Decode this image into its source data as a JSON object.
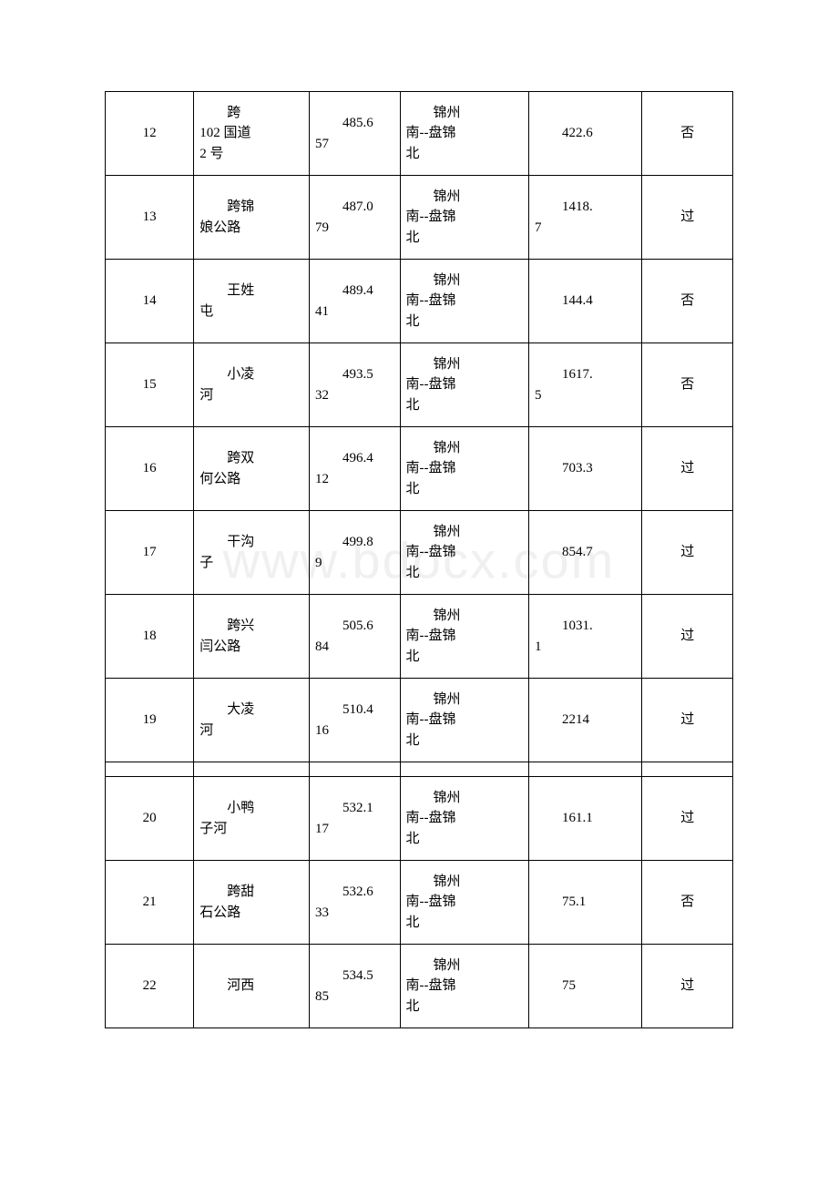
{
  "watermark": "www.bdocx.com",
  "table": {
    "rows": [
      {
        "c1": "12",
        "c2_line1": "跨",
        "c2_line2": "102 国道",
        "c2_line3": "2 号",
        "c3_line1": "485.6",
        "c3_line2": "57",
        "c4_line1": "锦州",
        "c4_line2": "南--盘锦",
        "c4_line3": "北",
        "c5_line1": "",
        "c5_line2": "422.6",
        "c6": "否"
      },
      {
        "c1": "13",
        "c2_line1": "跨锦",
        "c2_line2": "娘公路",
        "c2_line3": "",
        "c3_line1": "487.0",
        "c3_line2": "79",
        "c4_line1": "锦州",
        "c4_line2": "南--盘锦",
        "c4_line3": "北",
        "c5_line1": "1418.",
        "c5_line2": "7",
        "c6": "过"
      },
      {
        "c1": "14",
        "c2_line1": "王姓",
        "c2_line2": "屯",
        "c2_line3": "",
        "c3_line1": "489.4",
        "c3_line2": "41",
        "c4_line1": "锦州",
        "c4_line2": "南--盘锦",
        "c4_line3": "北",
        "c5_line1": "",
        "c5_line2": "144.4",
        "c6": "否"
      },
      {
        "c1": "15",
        "c2_line1": "小凌",
        "c2_line2": "河",
        "c2_line3": "",
        "c3_line1": "493.5",
        "c3_line2": "32",
        "c4_line1": "锦州",
        "c4_line2": "南--盘锦",
        "c4_line3": "北",
        "c5_line1": "1617.",
        "c5_line2": "5",
        "c6": "否"
      },
      {
        "c1": "16",
        "c2_line1": "跨双",
        "c2_line2": "何公路",
        "c2_line3": "",
        "c3_line1": "496.4",
        "c3_line2": "12",
        "c4_line1": "锦州",
        "c4_line2": "南--盘锦",
        "c4_line3": "北",
        "c5_line1": "",
        "c5_line2": "703.3",
        "c6": "过"
      },
      {
        "c1": "17",
        "c2_line1": "干沟",
        "c2_line2": "子",
        "c2_line3": "",
        "c3_line1": "499.8",
        "c3_line2": "9",
        "c4_line1": "锦州",
        "c4_line2": "南--盘锦",
        "c4_line3": "北",
        "c5_line1": "",
        "c5_line2": "854.7",
        "c6": "过"
      },
      {
        "c1": "18",
        "c2_line1": "跨兴",
        "c2_line2": "闫公路",
        "c2_line3": "",
        "c3_line1": "505.6",
        "c3_line2": "84",
        "c4_line1": "锦州",
        "c4_line2": "南--盘锦",
        "c4_line3": "北",
        "c5_line1": "1031.",
        "c5_line2": "1",
        "c6": "过"
      },
      {
        "c1": "19",
        "c2_line1": "大凌",
        "c2_line2": "河",
        "c2_line3": "",
        "c3_line1": "510.4",
        "c3_line2": "16",
        "c4_line1": "锦州",
        "c4_line2": "南--盘锦",
        "c4_line3": "北",
        "c5_line1": "",
        "c5_line2": "2214",
        "c6": "过"
      },
      {
        "spacer": true
      },
      {
        "c1": "20",
        "c2_line1": "小鸭",
        "c2_line2": "子河",
        "c2_line3": "",
        "c3_line1": "532.1",
        "c3_line2": "17",
        "c4_line1": "锦州",
        "c4_line2": "南--盘锦",
        "c4_line3": "北",
        "c5_line1": "",
        "c5_line2": "161.1",
        "c6": "过"
      },
      {
        "c1": "21",
        "c2_line1": "跨甜",
        "c2_line2": "石公路",
        "c2_line3": "",
        "c3_line1": "532.6",
        "c3_line2": "33",
        "c4_line1": "锦州",
        "c4_line2": "南--盘锦",
        "c4_line3": "北",
        "c5_line1": "",
        "c5_line2": "75.1",
        "c6": "否"
      },
      {
        "c1": "22",
        "c2_line1": "",
        "c2_line2": "河西",
        "c2_line3": "",
        "c3_line1": "534.5",
        "c3_line2": "85",
        "c4_line1": "锦州",
        "c4_line2": "南--盘锦",
        "c4_line3": "北",
        "c5_line1": "",
        "c5_line2": "75",
        "c6": "过"
      }
    ]
  }
}
